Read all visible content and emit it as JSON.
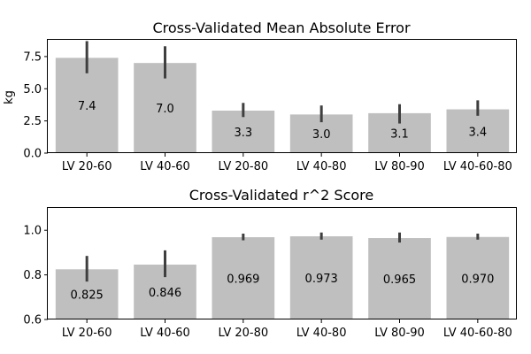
{
  "chart_data": [
    {
      "type": "bar",
      "title": "Cross-Validated Mean Absolute Error",
      "xlabel": "",
      "ylabel": "kg",
      "ylim": [
        0,
        8.8
      ],
      "yticks": [
        "0.0",
        "2.5",
        "5.0",
        "7.5"
      ],
      "categories": [
        "LV 20-60",
        "LV 40-60",
        "LV 20-80",
        "LV 40-80",
        "LV 80-90",
        "LV 40-60-80"
      ],
      "values": [
        7.4,
        7.0,
        3.3,
        3.0,
        3.1,
        3.4
      ],
      "labels": [
        "7.4",
        "7.0",
        "3.3",
        "3.0",
        "3.1",
        "3.4"
      ],
      "error_low": [
        6.2,
        5.8,
        2.8,
        2.4,
        2.3,
        2.9
      ],
      "error_high": [
        8.7,
        8.3,
        3.9,
        3.7,
        3.8,
        4.1
      ],
      "bar_color": "#bfbfbf",
      "error_color": "#3f3f3f",
      "grid": false
    },
    {
      "type": "bar",
      "title": "Cross-Validated r^2 Score",
      "xlabel": "",
      "ylabel": "",
      "ylim": [
        0.6,
        1.1
      ],
      "yticks": [
        "0.6",
        "0.8",
        "1.0"
      ],
      "categories": [
        "LV 20-60",
        "LV 40-60",
        "LV 20-80",
        "LV 40-80",
        "LV 80-90",
        "LV 40-60-80"
      ],
      "values": [
        0.825,
        0.846,
        0.969,
        0.973,
        0.965,
        0.97
      ],
      "labels": [
        "0.825",
        "0.846",
        "0.969",
        "0.973",
        "0.965",
        "0.970"
      ],
      "error_low": [
        0.77,
        0.79,
        0.955,
        0.958,
        0.945,
        0.958
      ],
      "error_high": [
        0.885,
        0.91,
        0.985,
        0.99,
        0.99,
        0.985
      ],
      "bar_color": "#bfbfbf",
      "error_color": "#3f3f3f",
      "grid": false
    }
  ]
}
